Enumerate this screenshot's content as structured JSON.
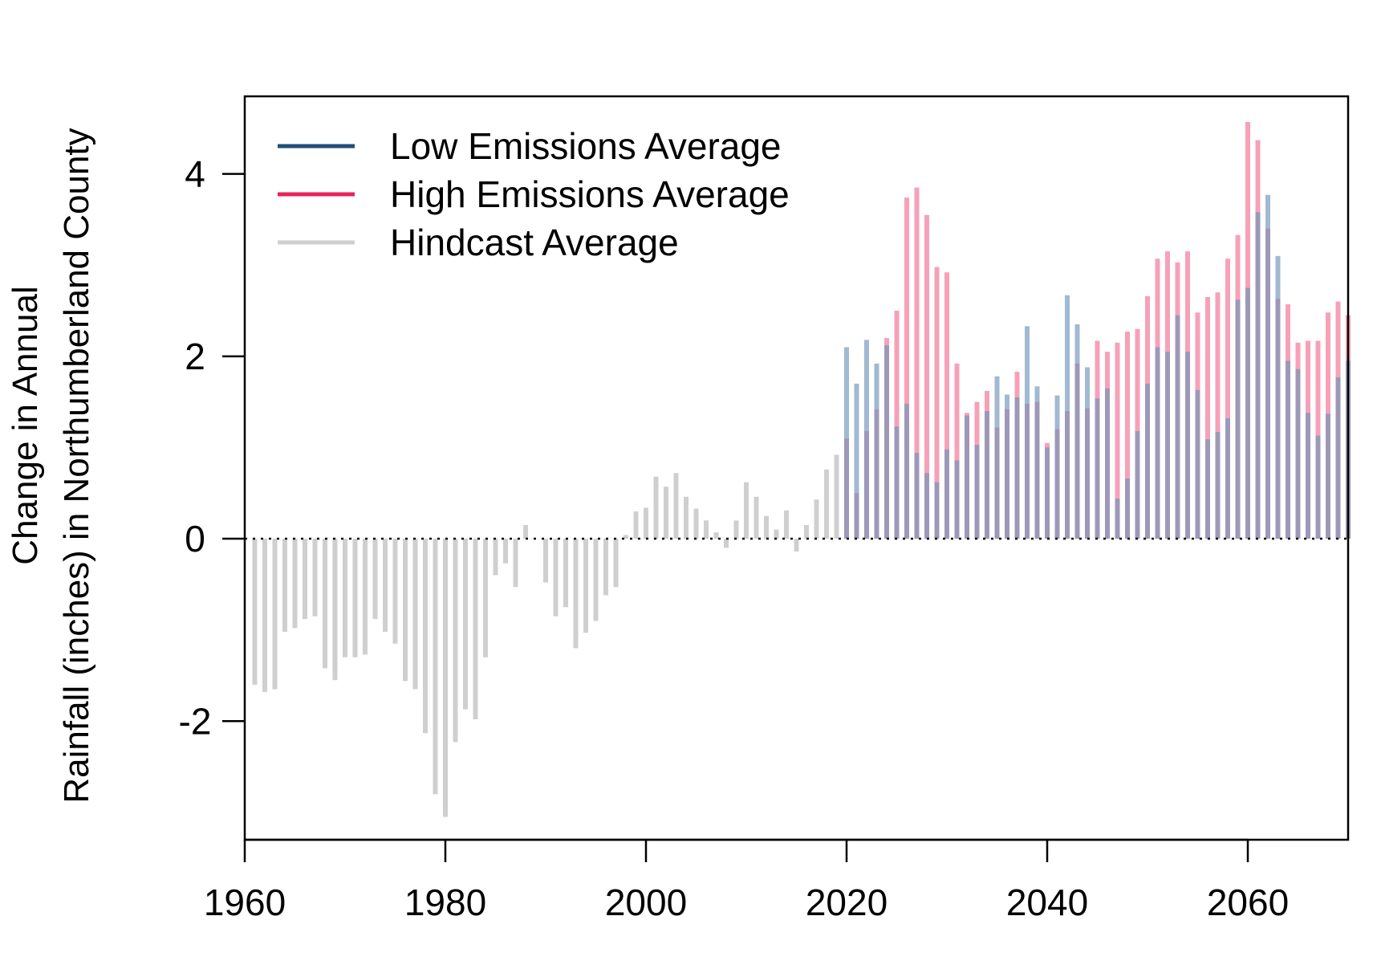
{
  "chart_data": {
    "type": "bar",
    "ylabel_line1": "Change in Annual",
    "ylabel_line2": "Rainfall (inches) in Northumberland County",
    "xlabel": "",
    "xlim": [
      1960,
      2070
    ],
    "ylim": [
      -3.3,
      4.85
    ],
    "x_ticks": [
      "1960",
      "1980",
      "2000",
      "2020",
      "2040",
      "2060"
    ],
    "x_tick_values": [
      1960,
      1980,
      2000,
      2020,
      2040,
      2060
    ],
    "y_ticks": [
      "-2",
      "0",
      "2",
      "4"
    ],
    "y_tick_values": [
      -2,
      0,
      2,
      4
    ],
    "zero_line": "dotted",
    "grid": false,
    "legend_position": "top-left",
    "legend": [
      {
        "label": "Low Emissions Average",
        "color": "#1f4e79"
      },
      {
        "label": "High Emissions Average",
        "color": "#e8245a"
      },
      {
        "label": "Hindcast Average",
        "color": "#cfcfcf"
      }
    ],
    "series": [
      {
        "name": "Hindcast Average",
        "color": "#cfcfcf",
        "x": [
          1961,
          1962,
          1963,
          1964,
          1965,
          1966,
          1967,
          1968,
          1969,
          1970,
          1971,
          1972,
          1973,
          1974,
          1975,
          1976,
          1977,
          1978,
          1979,
          1980,
          1981,
          1982,
          1983,
          1984,
          1985,
          1986,
          1987,
          1988,
          1989,
          1990,
          1991,
          1992,
          1993,
          1994,
          1995,
          1996,
          1997,
          1998,
          1999,
          2000,
          2001,
          2002,
          2003,
          2004,
          2005,
          2006,
          2007,
          2008,
          2009,
          2010,
          2011,
          2012,
          2013,
          2014,
          2015,
          2016,
          2017,
          2018,
          2019
        ],
        "values": [
          -1.6,
          -1.68,
          -1.65,
          -1.02,
          -0.98,
          -0.88,
          -0.85,
          -1.42,
          -1.55,
          -1.3,
          -1.3,
          -1.27,
          -0.88,
          -1.02,
          -1.15,
          -1.56,
          -1.65,
          -2.13,
          -2.8,
          -3.05,
          -2.23,
          -1.87,
          -1.98,
          -1.3,
          -0.4,
          -0.27,
          -0.53,
          0.15,
          0.0,
          -0.48,
          -0.85,
          -0.75,
          -1.2,
          -1.03,
          -0.9,
          -0.62,
          -0.53,
          0.04,
          0.3,
          0.34,
          0.68,
          0.57,
          0.72,
          0.46,
          0.33,
          0.2,
          0.07,
          -0.1,
          0.2,
          0.62,
          0.46,
          0.25,
          0.1,
          0.31,
          -0.14,
          0.15,
          0.43,
          0.76,
          0.92
        ]
      },
      {
        "name": "Low Emissions Average",
        "color": "#1f4e79",
        "x": [
          2020,
          2021,
          2022,
          2023,
          2024,
          2025,
          2026,
          2027,
          2028,
          2029,
          2030,
          2031,
          2032,
          2033,
          2034,
          2035,
          2036,
          2037,
          2038,
          2039,
          2040,
          2041,
          2042,
          2043,
          2044,
          2045,
          2046,
          2047,
          2048,
          2049,
          2050,
          2051,
          2052,
          2053,
          2054,
          2055,
          2056,
          2057,
          2058,
          2059,
          2060,
          2061,
          2062,
          2063,
          2064,
          2065,
          2066,
          2067,
          2068,
          2069,
          2070
        ],
        "values": [
          2.1,
          1.7,
          2.18,
          1.92,
          2.12,
          1.23,
          1.48,
          0.94,
          0.72,
          0.62,
          0.98,
          0.86,
          1.35,
          1.03,
          1.4,
          1.78,
          1.58,
          1.55,
          2.33,
          1.67,
          1.0,
          1.57,
          2.67,
          2.35,
          1.88,
          1.54,
          1.65,
          0.44,
          0.66,
          1.18,
          1.7,
          2.1,
          2.05,
          2.45,
          2.05,
          1.63,
          1.09,
          1.17,
          1.32,
          2.62,
          2.75,
          3.58,
          3.77,
          3.1,
          1.95,
          1.86,
          1.38,
          1.13,
          1.37,
          1.77,
          1.95
        ]
      },
      {
        "name": "High Emissions Average",
        "color": "#e8245a",
        "x": [
          2020,
          2021,
          2022,
          2023,
          2024,
          2025,
          2026,
          2027,
          2028,
          2029,
          2030,
          2031,
          2032,
          2033,
          2034,
          2035,
          2036,
          2037,
          2038,
          2039,
          2040,
          2041,
          2042,
          2043,
          2044,
          2045,
          2046,
          2047,
          2048,
          2049,
          2050,
          2051,
          2052,
          2053,
          2054,
          2055,
          2056,
          2057,
          2058,
          2059,
          2060,
          2061,
          2062,
          2063,
          2064,
          2065,
          2066,
          2067,
          2068,
          2069,
          2070
        ],
        "values": [
          1.1,
          0.5,
          1.18,
          1.42,
          2.2,
          2.5,
          3.74,
          3.85,
          3.55,
          2.98,
          2.92,
          1.92,
          1.38,
          1.5,
          1.62,
          1.22,
          1.42,
          1.83,
          1.48,
          1.5,
          1.05,
          1.2,
          1.4,
          1.92,
          1.43,
          2.17,
          2.05,
          2.15,
          2.27,
          2.3,
          2.66,
          3.07,
          3.15,
          3.03,
          3.15,
          2.48,
          2.65,
          2.7,
          3.07,
          3.33,
          4.57,
          4.37,
          3.4,
          2.63,
          2.57,
          2.15,
          2.17,
          2.17,
          2.48,
          2.6,
          2.45
        ]
      }
    ]
  }
}
